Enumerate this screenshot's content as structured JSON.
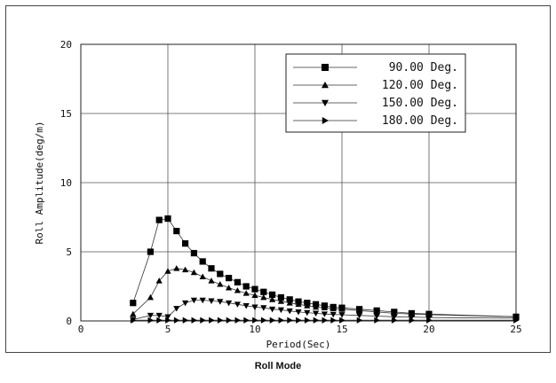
{
  "caption": "Roll Mode",
  "chart_data": {
    "type": "line",
    "title": "",
    "xlabel": "Period(Sec)",
    "ylabel": "Roll Amplitude(deg/m)",
    "xlim": [
      0,
      25
    ],
    "ylim": [
      0,
      20
    ],
    "x_ticks": [
      0,
      5,
      10,
      15,
      20,
      25
    ],
    "y_ticks": [
      0,
      5,
      10,
      15,
      20
    ],
    "grid": true,
    "legend_position": "top-right",
    "series": [
      {
        "name": "90.00 Deg.",
        "marker": "square",
        "x": [
          3,
          4,
          4.5,
          5,
          5.5,
          6,
          6.5,
          7,
          7.5,
          8,
          8.5,
          9,
          9.5,
          10,
          10.5,
          11,
          11.5,
          12,
          12.5,
          13,
          13.5,
          14,
          14.5,
          15,
          16,
          17,
          18,
          19,
          20,
          25
        ],
        "y": [
          1.3,
          5.0,
          7.3,
          7.4,
          6.5,
          5.6,
          4.9,
          4.3,
          3.8,
          3.4,
          3.1,
          2.8,
          2.5,
          2.3,
          2.1,
          1.9,
          1.7,
          1.55,
          1.4,
          1.3,
          1.2,
          1.1,
          1.0,
          0.95,
          0.85,
          0.75,
          0.65,
          0.55,
          0.5,
          0.3
        ]
      },
      {
        "name": "120.00 Deg.",
        "marker": "triangle-up",
        "x": [
          3,
          4,
          4.5,
          5,
          5.5,
          6,
          6.5,
          7,
          7.5,
          8,
          8.5,
          9,
          9.5,
          10,
          10.5,
          11,
          11.5,
          12,
          12.5,
          13,
          13.5,
          14,
          14.5,
          15,
          16,
          17,
          18,
          19,
          20,
          25
        ],
        "y": [
          0.5,
          1.7,
          2.9,
          3.6,
          3.8,
          3.7,
          3.5,
          3.2,
          2.9,
          2.65,
          2.4,
          2.2,
          2.0,
          1.85,
          1.7,
          1.55,
          1.42,
          1.3,
          1.2,
          1.1,
          1.0,
          0.95,
          0.9,
          0.85,
          0.75,
          0.65,
          0.55,
          0.5,
          0.45,
          0.3
        ]
      },
      {
        "name": "150.00 Deg.",
        "marker": "triangle-down",
        "x": [
          3,
          4,
          4.5,
          5,
          5.5,
          6,
          6.5,
          7,
          7.5,
          8,
          8.5,
          9,
          9.5,
          10,
          10.5,
          11,
          11.5,
          12,
          12.5,
          13,
          13.5,
          14,
          14.5,
          15,
          16,
          17,
          18,
          19,
          20,
          25
        ],
        "y": [
          0.1,
          0.4,
          0.4,
          0.3,
          0.9,
          1.3,
          1.5,
          1.5,
          1.45,
          1.4,
          1.3,
          1.2,
          1.1,
          1.0,
          0.95,
          0.85,
          0.8,
          0.72,
          0.65,
          0.6,
          0.55,
          0.5,
          0.47,
          0.45,
          0.4,
          0.35,
          0.3,
          0.28,
          0.25,
          0.2
        ]
      },
      {
        "name": "180.00 Deg.",
        "marker": "triangle-right",
        "x": [
          3,
          4,
          4.5,
          5,
          5.5,
          6,
          6.5,
          7,
          7.5,
          8,
          8.5,
          9,
          9.5,
          10,
          10.5,
          11,
          11.5,
          12,
          12.5,
          13,
          13.5,
          14,
          14.5,
          15,
          16,
          17,
          18,
          19,
          20,
          25
        ],
        "y": [
          0.05,
          0.05,
          0.05,
          0.05,
          0.05,
          0.05,
          0.05,
          0.05,
          0.05,
          0.05,
          0.05,
          0.05,
          0.05,
          0.05,
          0.05,
          0.05,
          0.05,
          0.05,
          0.05,
          0.05,
          0.05,
          0.05,
          0.05,
          0.05,
          0.05,
          0.05,
          0.05,
          0.05,
          0.05,
          0.05
        ]
      }
    ]
  }
}
